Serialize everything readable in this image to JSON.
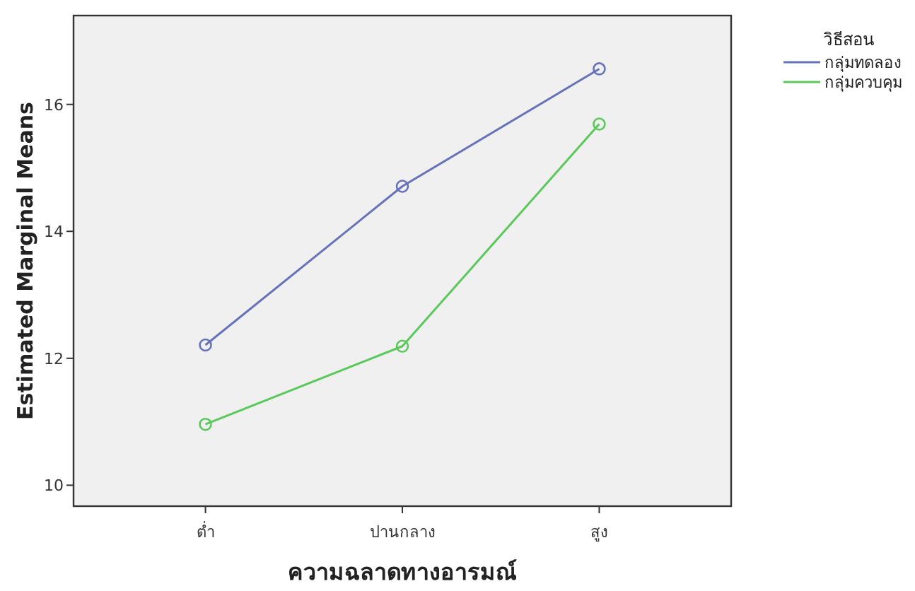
{
  "chart_data": {
    "type": "line",
    "xlabel": "ความฉลาดทางอารมณ์",
    "ylabel": "Estimated Marginal Means",
    "legend_title": "วิธีสอน",
    "categories": [
      "ต่ำ",
      "ปานกลาง",
      "สูง"
    ],
    "series": [
      {
        "name": "กลุ่มทดลอง",
        "color": "#6673b8",
        "values": [
          12.21,
          14.71,
          16.56
        ]
      },
      {
        "name": "กลุ่มควบคุม",
        "color": "#5ac85a",
        "values": [
          10.96,
          12.19,
          15.69
        ]
      }
    ],
    "ylim": [
      9.67,
      17.4
    ],
    "yticks": [
      10,
      12,
      14,
      16
    ],
    "marker": "circle",
    "legend": "top right",
    "grid": false
  }
}
